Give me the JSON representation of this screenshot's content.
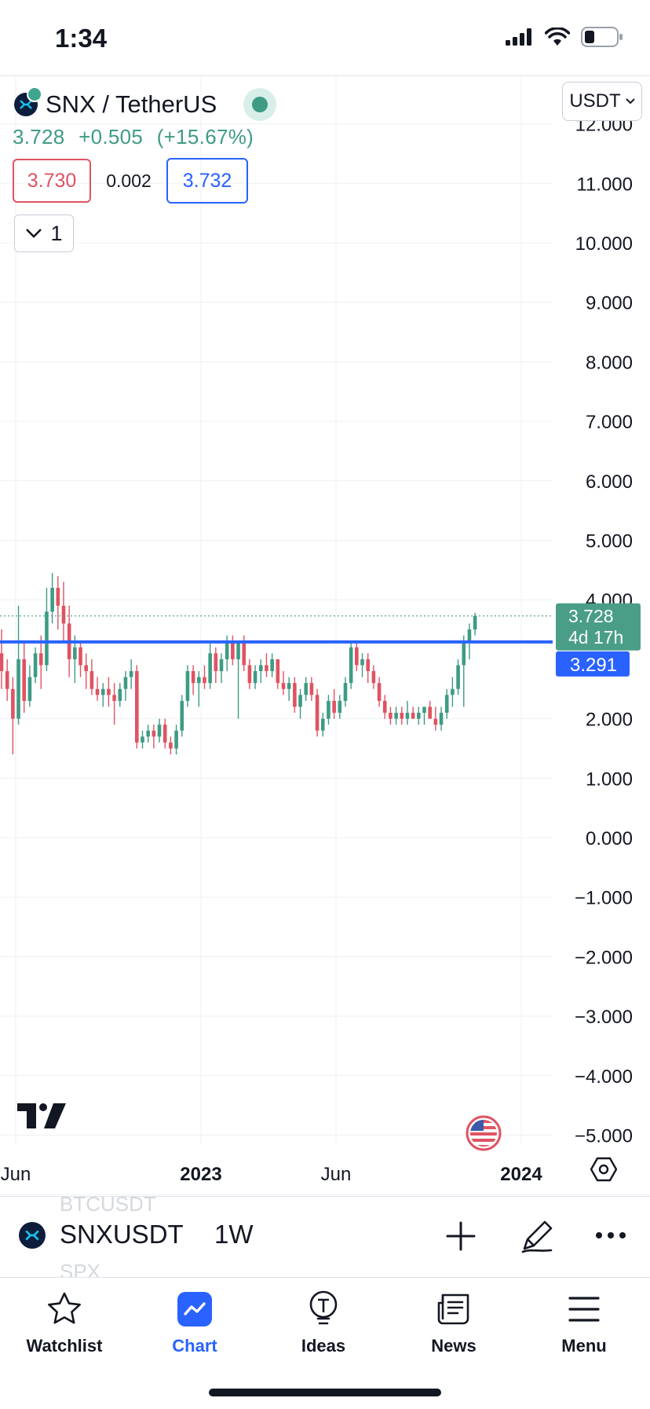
{
  "status_bar": {
    "time": "1:34"
  },
  "header": {
    "symbol_title": "SNX / TetherUS",
    "last_price": "3.728",
    "change": "+0.505",
    "change_percent": "(+15.67%)",
    "bid": "3.730",
    "spread": "0.002",
    "ask": "3.732",
    "collapse_count": "1",
    "currency": "USDT"
  },
  "colors": {
    "up": "#3e9b84",
    "down": "#e05362",
    "accent": "#2962ff",
    "grid": "#eef0f3"
  },
  "chart_data": {
    "type": "candlestick",
    "interval": "1W",
    "y_ticks": [
      "12.000",
      "11.000",
      "10.000",
      "9.000",
      "8.000",
      "7.000",
      "6.000",
      "5.000",
      "4.000",
      "2.000",
      "1.000",
      "0.000",
      "−1.000",
      "−2.000",
      "−3.000",
      "−4.000",
      "−5.000"
    ],
    "x_ticks": [
      "Jun",
      "2023",
      "Jun",
      "2024"
    ],
    "last_price_label": "3.728",
    "countdown_label": "4d 17h",
    "horizontal_line": {
      "value": 3.291,
      "label": "3.291"
    },
    "candles": [
      [
        3.1,
        3.5,
        2.5,
        2.8
      ],
      [
        2.8,
        3.0,
        2.3,
        2.5
      ],
      [
        2.5,
        2.7,
        1.4,
        2.0
      ],
      [
        2.0,
        3.9,
        1.9,
        3.0
      ],
      [
        3.0,
        3.3,
        2.1,
        2.3
      ],
      [
        2.3,
        2.9,
        2.2,
        2.7
      ],
      [
        2.7,
        3.2,
        2.6,
        3.1
      ],
      [
        3.1,
        3.4,
        2.5,
        2.9
      ],
      [
        2.9,
        4.2,
        2.8,
        3.8
      ],
      [
        3.8,
        4.45,
        3.6,
        4.2
      ],
      [
        4.2,
        4.4,
        3.5,
        3.9
      ],
      [
        3.9,
        4.3,
        3.3,
        3.6
      ],
      [
        3.6,
        3.9,
        2.7,
        3.0
      ],
      [
        3.0,
        3.4,
        2.6,
        3.2
      ],
      [
        3.2,
        3.3,
        2.7,
        2.9
      ],
      [
        2.9,
        3.1,
        2.5,
        2.8
      ],
      [
        2.8,
        3.0,
        2.4,
        2.5
      ],
      [
        2.5,
        2.7,
        2.3,
        2.4
      ],
      [
        2.4,
        2.6,
        2.2,
        2.5
      ],
      [
        2.5,
        2.7,
        2.2,
        2.4
      ],
      [
        2.4,
        2.6,
        1.9,
        2.3
      ],
      [
        2.3,
        2.6,
        2.2,
        2.5
      ],
      [
        2.5,
        2.8,
        2.3,
        2.7
      ],
      [
        2.7,
        3.0,
        2.5,
        2.8
      ],
      [
        2.8,
        2.9,
        1.5,
        1.6
      ],
      [
        1.6,
        1.8,
        1.5,
        1.7
      ],
      [
        1.7,
        1.9,
        1.6,
        1.8
      ],
      [
        1.8,
        1.9,
        1.5,
        1.7
      ],
      [
        1.7,
        2.0,
        1.6,
        1.9
      ],
      [
        1.9,
        2.0,
        1.5,
        1.6
      ],
      [
        1.6,
        1.7,
        1.4,
        1.5
      ],
      [
        1.5,
        1.9,
        1.4,
        1.8
      ],
      [
        1.8,
        2.4,
        1.7,
        2.3
      ],
      [
        2.3,
        2.9,
        2.2,
        2.8
      ],
      [
        2.8,
        2.9,
        2.4,
        2.6
      ],
      [
        2.6,
        2.8,
        2.2,
        2.7
      ],
      [
        2.7,
        2.9,
        2.5,
        2.6
      ],
      [
        2.6,
        3.3,
        2.5,
        3.1
      ],
      [
        3.1,
        3.2,
        2.6,
        2.8
      ],
      [
        2.8,
        3.1,
        2.6,
        3.0
      ],
      [
        3.0,
        3.4,
        2.8,
        3.3
      ],
      [
        3.3,
        3.4,
        2.9,
        3.0
      ],
      [
        3.0,
        3.3,
        2.0,
        3.3
      ],
      [
        3.3,
        3.4,
        2.8,
        2.9
      ],
      [
        2.9,
        3.0,
        2.5,
        2.6
      ],
      [
        2.6,
        2.9,
        2.5,
        2.8
      ],
      [
        2.8,
        3.0,
        2.6,
        2.9
      ],
      [
        2.9,
        3.1,
        2.7,
        2.8
      ],
      [
        2.8,
        3.1,
        2.7,
        3.0
      ],
      [
        3.0,
        3.0,
        2.5,
        2.6
      ],
      [
        2.6,
        2.8,
        2.4,
        2.5
      ],
      [
        2.5,
        2.7,
        2.3,
        2.6
      ],
      [
        2.6,
        2.7,
        2.1,
        2.2
      ],
      [
        2.2,
        2.5,
        2.0,
        2.4
      ],
      [
        2.4,
        2.7,
        2.3,
        2.6
      ],
      [
        2.6,
        2.7,
        2.3,
        2.4
      ],
      [
        2.4,
        2.5,
        1.7,
        1.8
      ],
      [
        1.8,
        2.1,
        1.7,
        2.0
      ],
      [
        2.0,
        2.4,
        1.9,
        2.3
      ],
      [
        2.3,
        2.5,
        2.0,
        2.1
      ],
      [
        2.1,
        2.4,
        2.0,
        2.3
      ],
      [
        2.3,
        2.7,
        2.2,
        2.6
      ],
      [
        2.6,
        3.3,
        2.5,
        3.2
      ],
      [
        3.2,
        3.3,
        2.8,
        2.9
      ],
      [
        2.9,
        3.1,
        2.7,
        3.0
      ],
      [
        3.0,
        3.1,
        2.6,
        2.8
      ],
      [
        2.8,
        2.9,
        2.5,
        2.6
      ],
      [
        2.6,
        2.7,
        2.2,
        2.3
      ],
      [
        2.3,
        2.4,
        2.0,
        2.1
      ],
      [
        2.1,
        2.2,
        1.9,
        2.0
      ],
      [
        2.0,
        2.2,
        1.9,
        2.1
      ],
      [
        2.1,
        2.2,
        1.9,
        2.0
      ],
      [
        2.0,
        2.3,
        1.9,
        2.1
      ],
      [
        2.1,
        2.2,
        2.0,
        2.0
      ],
      [
        2.0,
        2.2,
        1.9,
        2.1
      ],
      [
        2.1,
        2.2,
        1.9,
        2.2
      ],
      [
        2.2,
        2.3,
        2.0,
        2.0
      ],
      [
        2.0,
        2.2,
        1.8,
        1.9
      ],
      [
        1.9,
        2.2,
        1.8,
        2.1
      ],
      [
        2.1,
        2.5,
        2.0,
        2.4
      ],
      [
        2.4,
        2.7,
        2.2,
        2.5
      ],
      [
        2.5,
        3.0,
        2.4,
        2.9
      ],
      [
        2.9,
        3.4,
        2.2,
        3.3
      ],
      [
        3.3,
        3.6,
        3.0,
        3.5
      ],
      [
        3.5,
        3.78,
        3.4,
        3.728
      ]
    ]
  },
  "symbol_bar": {
    "symbol": "SNXUSDT",
    "interval": "1W",
    "ghost_top": "BTCUSDT",
    "ghost_bottom": "SPX"
  },
  "tabs": [
    {
      "label": "Watchlist",
      "icon": "star-icon"
    },
    {
      "label": "Chart",
      "icon": "chart-icon",
      "active": true
    },
    {
      "label": "Ideas",
      "icon": "lightbulb-icon"
    },
    {
      "label": "News",
      "icon": "news-icon"
    },
    {
      "label": "Menu",
      "icon": "menu-icon"
    }
  ]
}
